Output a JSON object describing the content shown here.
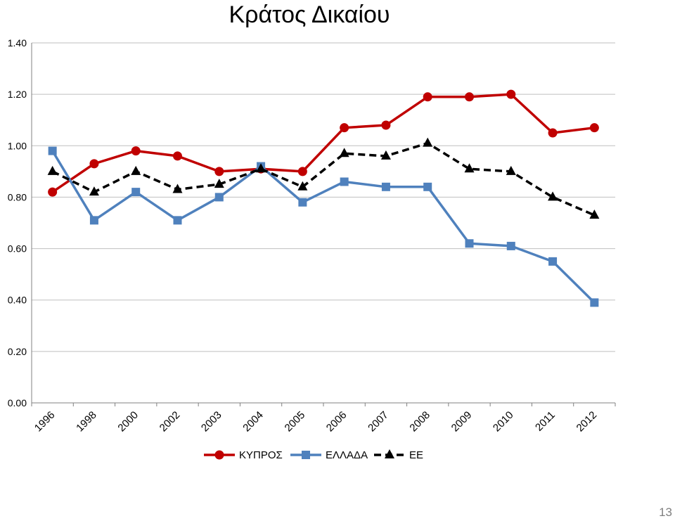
{
  "page_number": "13",
  "chart_data": {
    "type": "line",
    "title": "Κράτος Δικαίου",
    "xlabel": "",
    "ylabel": "",
    "ylim": [
      0,
      1.4
    ],
    "yticks": [
      "0.00",
      "0.20",
      "0.40",
      "0.60",
      "0.80",
      "1.00",
      "1.20",
      "1.40"
    ],
    "grid": true,
    "legend": "bottom",
    "categories": [
      "1996",
      "1998",
      "2000",
      "2002",
      "2003",
      "2004",
      "2005",
      "2006",
      "2007",
      "2008",
      "2009",
      "2010",
      "2011",
      "2012"
    ],
    "series": [
      {
        "name": "ΚΥΠΡΟΣ",
        "color": "#c00000",
        "marker": "circle",
        "dash": "solid",
        "values": [
          0.82,
          0.93,
          0.98,
          0.96,
          0.9,
          0.91,
          0.9,
          1.07,
          1.08,
          1.19,
          1.19,
          1.2,
          1.05,
          1.07
        ]
      },
      {
        "name": "ΕΛΛΑΔΑ",
        "color": "#4f81bd",
        "marker": "square",
        "dash": "solid",
        "values": [
          0.98,
          0.71,
          0.82,
          0.71,
          0.8,
          0.92,
          0.78,
          0.86,
          0.84,
          0.84,
          0.62,
          0.61,
          0.55,
          0.39
        ]
      },
      {
        "name": "ΕΕ",
        "color": "#000000",
        "marker": "triangle",
        "dash": "dashed",
        "values": [
          0.9,
          0.82,
          0.9,
          0.83,
          0.85,
          0.91,
          0.84,
          0.97,
          0.96,
          1.01,
          0.91,
          0.9,
          0.8,
          0.73
        ]
      }
    ]
  }
}
